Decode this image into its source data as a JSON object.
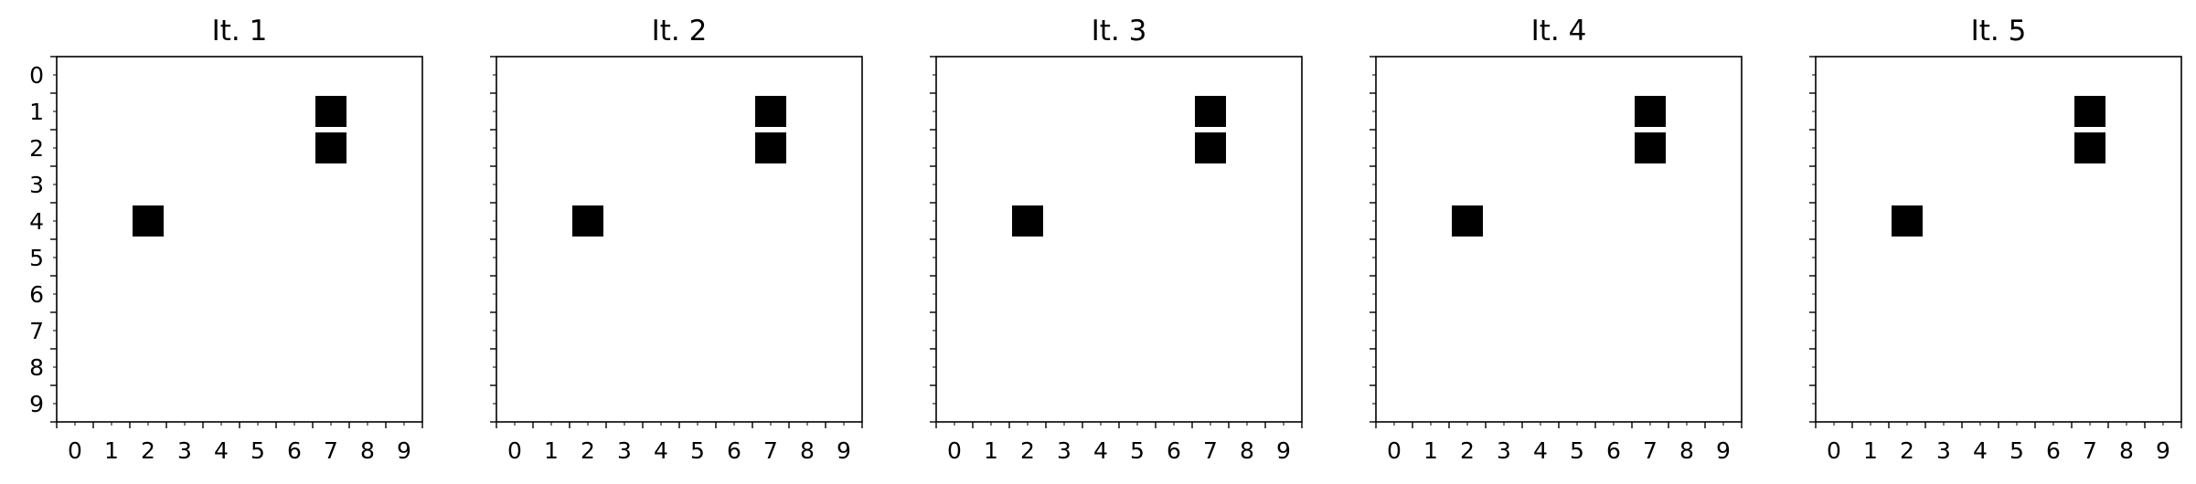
{
  "chart_data": [
    {
      "type": "heatmap",
      "title": "It. 1",
      "xlabel": "",
      "ylabel": "",
      "x_ticks": [
        "0",
        "1",
        "2",
        "3",
        "4",
        "5",
        "6",
        "7",
        "8",
        "9"
      ],
      "y_ticks": [
        "0",
        "1",
        "2",
        "3",
        "4",
        "5",
        "6",
        "7",
        "8",
        "9"
      ],
      "grid": false,
      "filled_cells": [
        {
          "x": 7,
          "y": 1
        },
        {
          "x": 7,
          "y": 2
        },
        {
          "x": 2,
          "y": 4
        }
      ],
      "cell_color": "#000000",
      "background": "#ffffff"
    },
    {
      "type": "heatmap",
      "title": "It. 2",
      "xlabel": "",
      "ylabel": "",
      "x_ticks": [
        "0",
        "1",
        "2",
        "3",
        "4",
        "5",
        "6",
        "7",
        "8",
        "9"
      ],
      "y_ticks": [],
      "grid": false,
      "filled_cells": [
        {
          "x": 7,
          "y": 1
        },
        {
          "x": 7,
          "y": 2
        },
        {
          "x": 2,
          "y": 4
        }
      ],
      "cell_color": "#000000",
      "background": "#ffffff"
    },
    {
      "type": "heatmap",
      "title": "It. 3",
      "xlabel": "",
      "ylabel": "",
      "x_ticks": [
        "0",
        "1",
        "2",
        "3",
        "4",
        "5",
        "6",
        "7",
        "8",
        "9"
      ],
      "y_ticks": [],
      "grid": false,
      "filled_cells": [
        {
          "x": 7,
          "y": 1
        },
        {
          "x": 7,
          "y": 2
        },
        {
          "x": 2,
          "y": 4
        }
      ],
      "cell_color": "#000000",
      "background": "#ffffff"
    },
    {
      "type": "heatmap",
      "title": "It. 4",
      "xlabel": "",
      "ylabel": "",
      "x_ticks": [
        "0",
        "1",
        "2",
        "3",
        "4",
        "5",
        "6",
        "7",
        "8",
        "9"
      ],
      "y_ticks": [],
      "grid": false,
      "filled_cells": [
        {
          "x": 7,
          "y": 1
        },
        {
          "x": 7,
          "y": 2
        },
        {
          "x": 2,
          "y": 4
        }
      ],
      "cell_color": "#000000",
      "background": "#ffffff"
    },
    {
      "type": "heatmap",
      "title": "It. 5",
      "xlabel": "",
      "ylabel": "",
      "x_ticks": [
        "0",
        "1",
        "2",
        "3",
        "4",
        "5",
        "6",
        "7",
        "8",
        "9"
      ],
      "y_ticks": [],
      "grid": false,
      "filled_cells": [
        {
          "x": 7,
          "y": 1
        },
        {
          "x": 7,
          "y": 2
        },
        {
          "x": 2,
          "y": 4
        }
      ],
      "cell_color": "#000000",
      "background": "#ffffff"
    }
  ]
}
